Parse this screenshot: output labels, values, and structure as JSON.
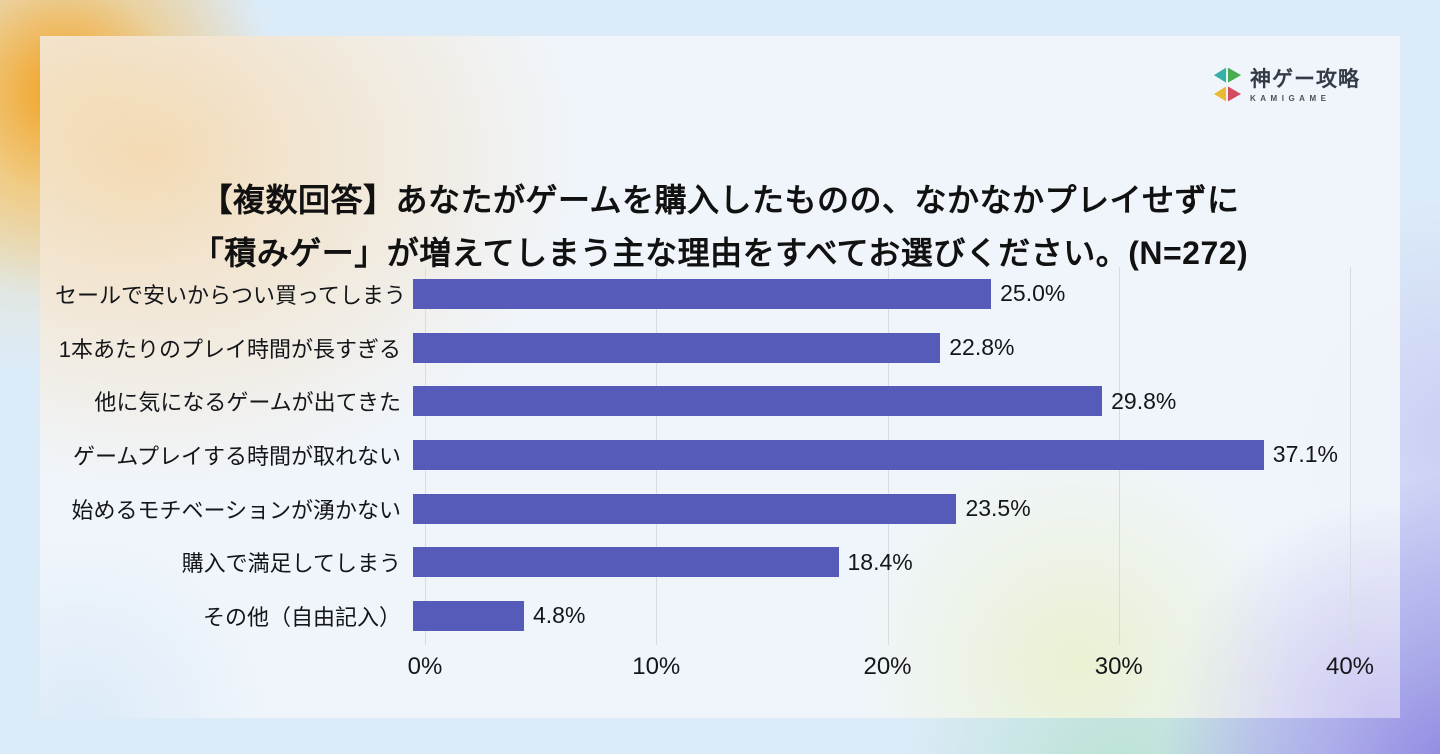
{
  "logo": {
    "name": "神ゲー攻略",
    "subname": "KAMIGAME",
    "icon": "kamigame-triangles-icon",
    "icon_colors": {
      "teal": "#35b0a5",
      "green": "#47ad4e",
      "yellow": "#e9bb35",
      "red": "#d44a60"
    }
  },
  "title": {
    "line1": "【複数回答】あなたがゲームを購入したものの、なかなかプレイせずに",
    "line2": "「積みゲー」が増えてしまう主な理由をすべてお選びください。(N=272)"
  },
  "chart_data": {
    "type": "bar",
    "orientation": "horizontal",
    "title": "【複数回答】あなたがゲームを購入したものの、なかなかプレイせずに「積みゲー」が増えてしまう主な理由をすべてお選びください。(N=272)",
    "sample_size": "N=272",
    "categories": [
      "セールで安いからつい買ってしまう",
      "1本あたりのプレイ時間が長すぎる",
      "他に気になるゲームが出てきた",
      "ゲームプレイする時間が取れない",
      "始めるモチベーションが湧かない",
      "購入で満足してしまう",
      "その他（自由記入）"
    ],
    "values": [
      25.0,
      22.8,
      29.8,
      37.1,
      23.5,
      18.4,
      4.8
    ],
    "value_labels": [
      "25.0%",
      "22.8%",
      "29.8%",
      "37.1%",
      "23.5%",
      "18.4%",
      "4.8%"
    ],
    "x_ticks": [
      "0%",
      "10%",
      "20%",
      "30%",
      "40%"
    ],
    "x_tick_values": [
      0,
      10,
      20,
      30,
      40
    ],
    "xlim": [
      0,
      40
    ],
    "xlabel": "",
    "ylabel": "",
    "grid": true,
    "legend": "none",
    "bar_color": "#565ab8"
  }
}
